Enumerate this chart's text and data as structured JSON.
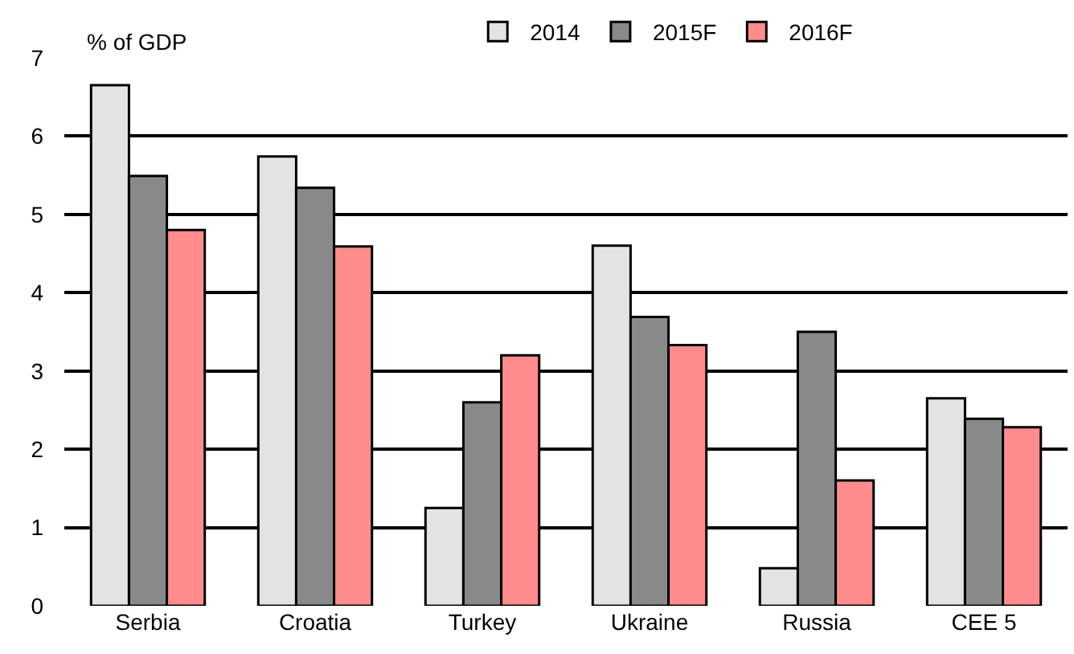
{
  "chart_data": {
    "type": "bar",
    "ylabel": "% of GDP",
    "categories": [
      "Serbia",
      "Croatia",
      "Turkey",
      "Ukraine",
      "Russia",
      "CEE 5"
    ],
    "series": [
      {
        "name": "2014",
        "color": "#e3e3e3",
        "values": [
          6.65,
          5.74,
          1.25,
          4.6,
          0.48,
          2.65
        ]
      },
      {
        "name": "2015F",
        "color": "#898989",
        "values": [
          5.49,
          5.34,
          2.6,
          3.69,
          3.5,
          2.39
        ]
      },
      {
        "name": "2016F",
        "color": "#ff8c8c",
        "values": [
          4.8,
          4.59,
          3.2,
          3.33,
          1.6,
          2.28
        ]
      }
    ],
    "ylim": [
      0,
      7
    ],
    "yticks": [
      0,
      1,
      2,
      3,
      4,
      5,
      6,
      7
    ],
    "grid": "y",
    "legend": "top"
  }
}
